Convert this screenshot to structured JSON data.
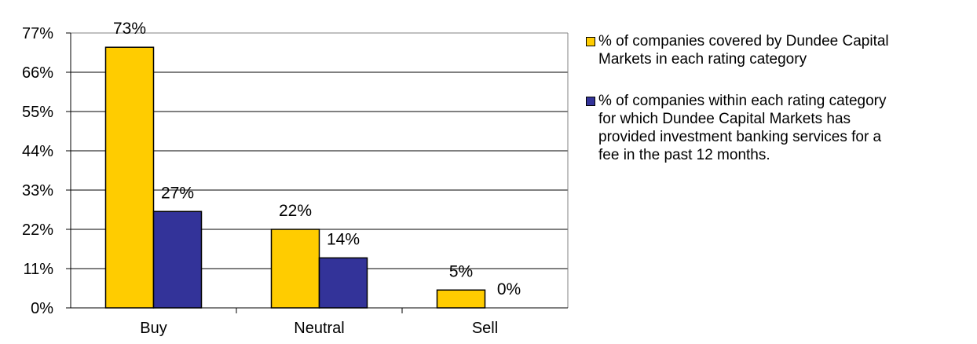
{
  "chart_data": {
    "type": "bar",
    "categories": [
      "Buy",
      "Neutral",
      "Sell"
    ],
    "series": [
      {
        "name": "% of companies covered by Dundee Capital\nMarkets in each rating category",
        "values": [
          73,
          22,
          5
        ],
        "color": "#FFCC00",
        "labels": [
          "73%",
          "22%",
          "5%"
        ]
      },
      {
        "name": "% of companies within each rating category\nfor which Dundee Capital Markets has\nprovided investment banking services for a\nfee in the past 12 months.",
        "values": [
          27,
          14,
          0
        ],
        "color": "#333399",
        "labels": [
          "27%",
          "14%",
          "0%"
        ]
      }
    ],
    "yticks": [
      "0%",
      "11%",
      "22%",
      "33%",
      "44%",
      "55%",
      "66%",
      "77%"
    ],
    "ylim": [
      0,
      77
    ],
    "grid": true,
    "legend": "right"
  }
}
